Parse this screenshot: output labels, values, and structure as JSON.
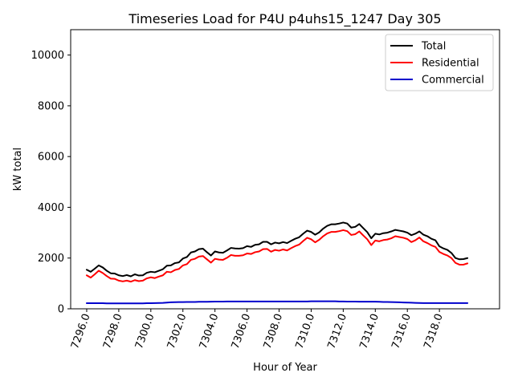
{
  "chart_data": {
    "type": "line",
    "title": "Timeseries Load for P4U p4uhs15_1247  Day 305",
    "xlabel": "Hour of Year",
    "ylabel": "kW total",
    "xlim": [
      7295.0,
      7321.75
    ],
    "ylim": [
      0,
      11000
    ],
    "xticks": [
      7296,
      7298,
      7300,
      7302,
      7304,
      7306,
      7308,
      7310,
      7312,
      7314,
      7316,
      7318
    ],
    "xtick_labels": [
      "7296.0",
      "7298.0",
      "7300.0",
      "7302.0",
      "7304.0",
      "7306.0",
      "7308.0",
      "7310.0",
      "7312.0",
      "7314.0",
      "7316.0",
      "7318.0"
    ],
    "yticks": [
      0,
      2000,
      4000,
      6000,
      8000,
      10000
    ],
    "ytick_labels": [
      "0",
      "2000",
      "4000",
      "6000",
      "8000",
      "10000"
    ],
    "x": [
      7296.0,
      7296.25,
      7296.5,
      7296.75,
      7297.0,
      7297.25,
      7297.5,
      7297.75,
      7298.0,
      7298.25,
      7298.5,
      7298.75,
      7299.0,
      7299.25,
      7299.5,
      7299.75,
      7300.0,
      7300.25,
      7300.5,
      7300.75,
      7301.0,
      7301.25,
      7301.5,
      7301.75,
      7302.0,
      7302.25,
      7302.5,
      7302.75,
      7303.0,
      7303.25,
      7303.5,
      7303.75,
      7304.0,
      7304.25,
      7304.5,
      7304.75,
      7305.0,
      7305.25,
      7305.5,
      7305.75,
      7306.0,
      7306.25,
      7306.5,
      7306.75,
      7307.0,
      7307.25,
      7307.5,
      7307.75,
      7308.0,
      7308.25,
      7308.5,
      7308.75,
      7309.0,
      7309.25,
      7309.5,
      7309.75,
      7310.0,
      7310.25,
      7310.5,
      7310.75,
      7311.0,
      7311.25,
      7311.5,
      7311.75,
      7312.0,
      7312.25,
      7312.5,
      7312.75,
      7313.0,
      7313.25,
      7313.5,
      7313.75,
      7314.0,
      7314.25,
      7314.5,
      7314.75,
      7315.0,
      7315.25,
      7315.5,
      7315.75,
      7316.0,
      7316.25,
      7316.5,
      7316.75,
      7317.0,
      7317.25,
      7317.5,
      7317.75,
      7318.0,
      7318.25,
      7318.5,
      7318.75,
      7319.0,
      7319.25,
      7319.5,
      7319.75
    ],
    "series": [
      {
        "name": "Total",
        "color": "#000000",
        "values": [
          1540,
          1460,
          1580,
          1710,
          1630,
          1500,
          1400,
          1390,
          1320,
          1290,
          1330,
          1280,
          1360,
          1310,
          1320,
          1420,
          1460,
          1440,
          1500,
          1560,
          1700,
          1710,
          1800,
          1830,
          1980,
          2040,
          2220,
          2260,
          2350,
          2370,
          2230,
          2100,
          2260,
          2220,
          2210,
          2300,
          2400,
          2380,
          2370,
          2390,
          2470,
          2440,
          2520,
          2540,
          2640,
          2640,
          2540,
          2610,
          2580,
          2630,
          2590,
          2680,
          2760,
          2820,
          2960,
          3080,
          3030,
          2920,
          3010,
          3160,
          3270,
          3330,
          3330,
          3360,
          3400,
          3360,
          3200,
          3230,
          3340,
          3180,
          3020,
          2780,
          2960,
          2930,
          2980,
          3000,
          3050,
          3110,
          3080,
          3050,
          3000,
          2900,
          2960,
          3050,
          2920,
          2860,
          2760,
          2700,
          2460,
          2380,
          2320,
          2200,
          2000,
          1950,
          1960,
          2000
        ]
      },
      {
        "name": "Residential",
        "color": "#ff0000",
        "values": [
          1320,
          1230,
          1360,
          1500,
          1410,
          1290,
          1190,
          1180,
          1110,
          1080,
          1110,
          1070,
          1130,
          1090,
          1110,
          1200,
          1240,
          1210,
          1270,
          1320,
          1460,
          1440,
          1530,
          1570,
          1710,
          1760,
          1930,
          1970,
          2060,
          2080,
          1950,
          1820,
          1970,
          1940,
          1930,
          2010,
          2120,
          2090,
          2090,
          2110,
          2180,
          2160,
          2230,
          2260,
          2350,
          2360,
          2250,
          2320,
          2290,
          2340,
          2300,
          2390,
          2470,
          2530,
          2670,
          2800,
          2740,
          2620,
          2720,
          2860,
          2970,
          3030,
          3030,
          3060,
          3100,
          3060,
          2910,
          2940,
          3050,
          2890,
          2740,
          2510,
          2690,
          2660,
          2710,
          2730,
          2780,
          2860,
          2830,
          2800,
          2750,
          2630,
          2700,
          2810,
          2660,
          2590,
          2500,
          2440,
          2240,
          2160,
          2100,
          2000,
          1810,
          1740,
          1740,
          1790
        ]
      },
      {
        "name": "Commercial",
        "color": "#0000cc",
        "values": [
          220,
          220,
          220,
          220,
          220,
          215,
          215,
          215,
          215,
          215,
          215,
          215,
          215,
          215,
          215,
          220,
          220,
          225,
          230,
          235,
          245,
          255,
          260,
          265,
          265,
          270,
          270,
          270,
          275,
          275,
          275,
          280,
          285,
          285,
          285,
          290,
          290,
          290,
          290,
          290,
          290,
          290,
          290,
          290,
          290,
          290,
          290,
          290,
          290,
          290,
          290,
          290,
          290,
          290,
          290,
          290,
          295,
          295,
          295,
          295,
          295,
          295,
          295,
          290,
          290,
          285,
          285,
          285,
          280,
          280,
          280,
          280,
          280,
          275,
          270,
          270,
          265,
          260,
          255,
          250,
          245,
          240,
          235,
          230,
          225,
          225,
          225,
          225,
          225,
          225,
          225,
          225,
          225,
          225,
          225,
          225
        ]
      }
    ],
    "legend": {
      "position": "top-right",
      "entries": [
        "Total",
        "Residential",
        "Commercial"
      ]
    },
    "grid": false
  }
}
